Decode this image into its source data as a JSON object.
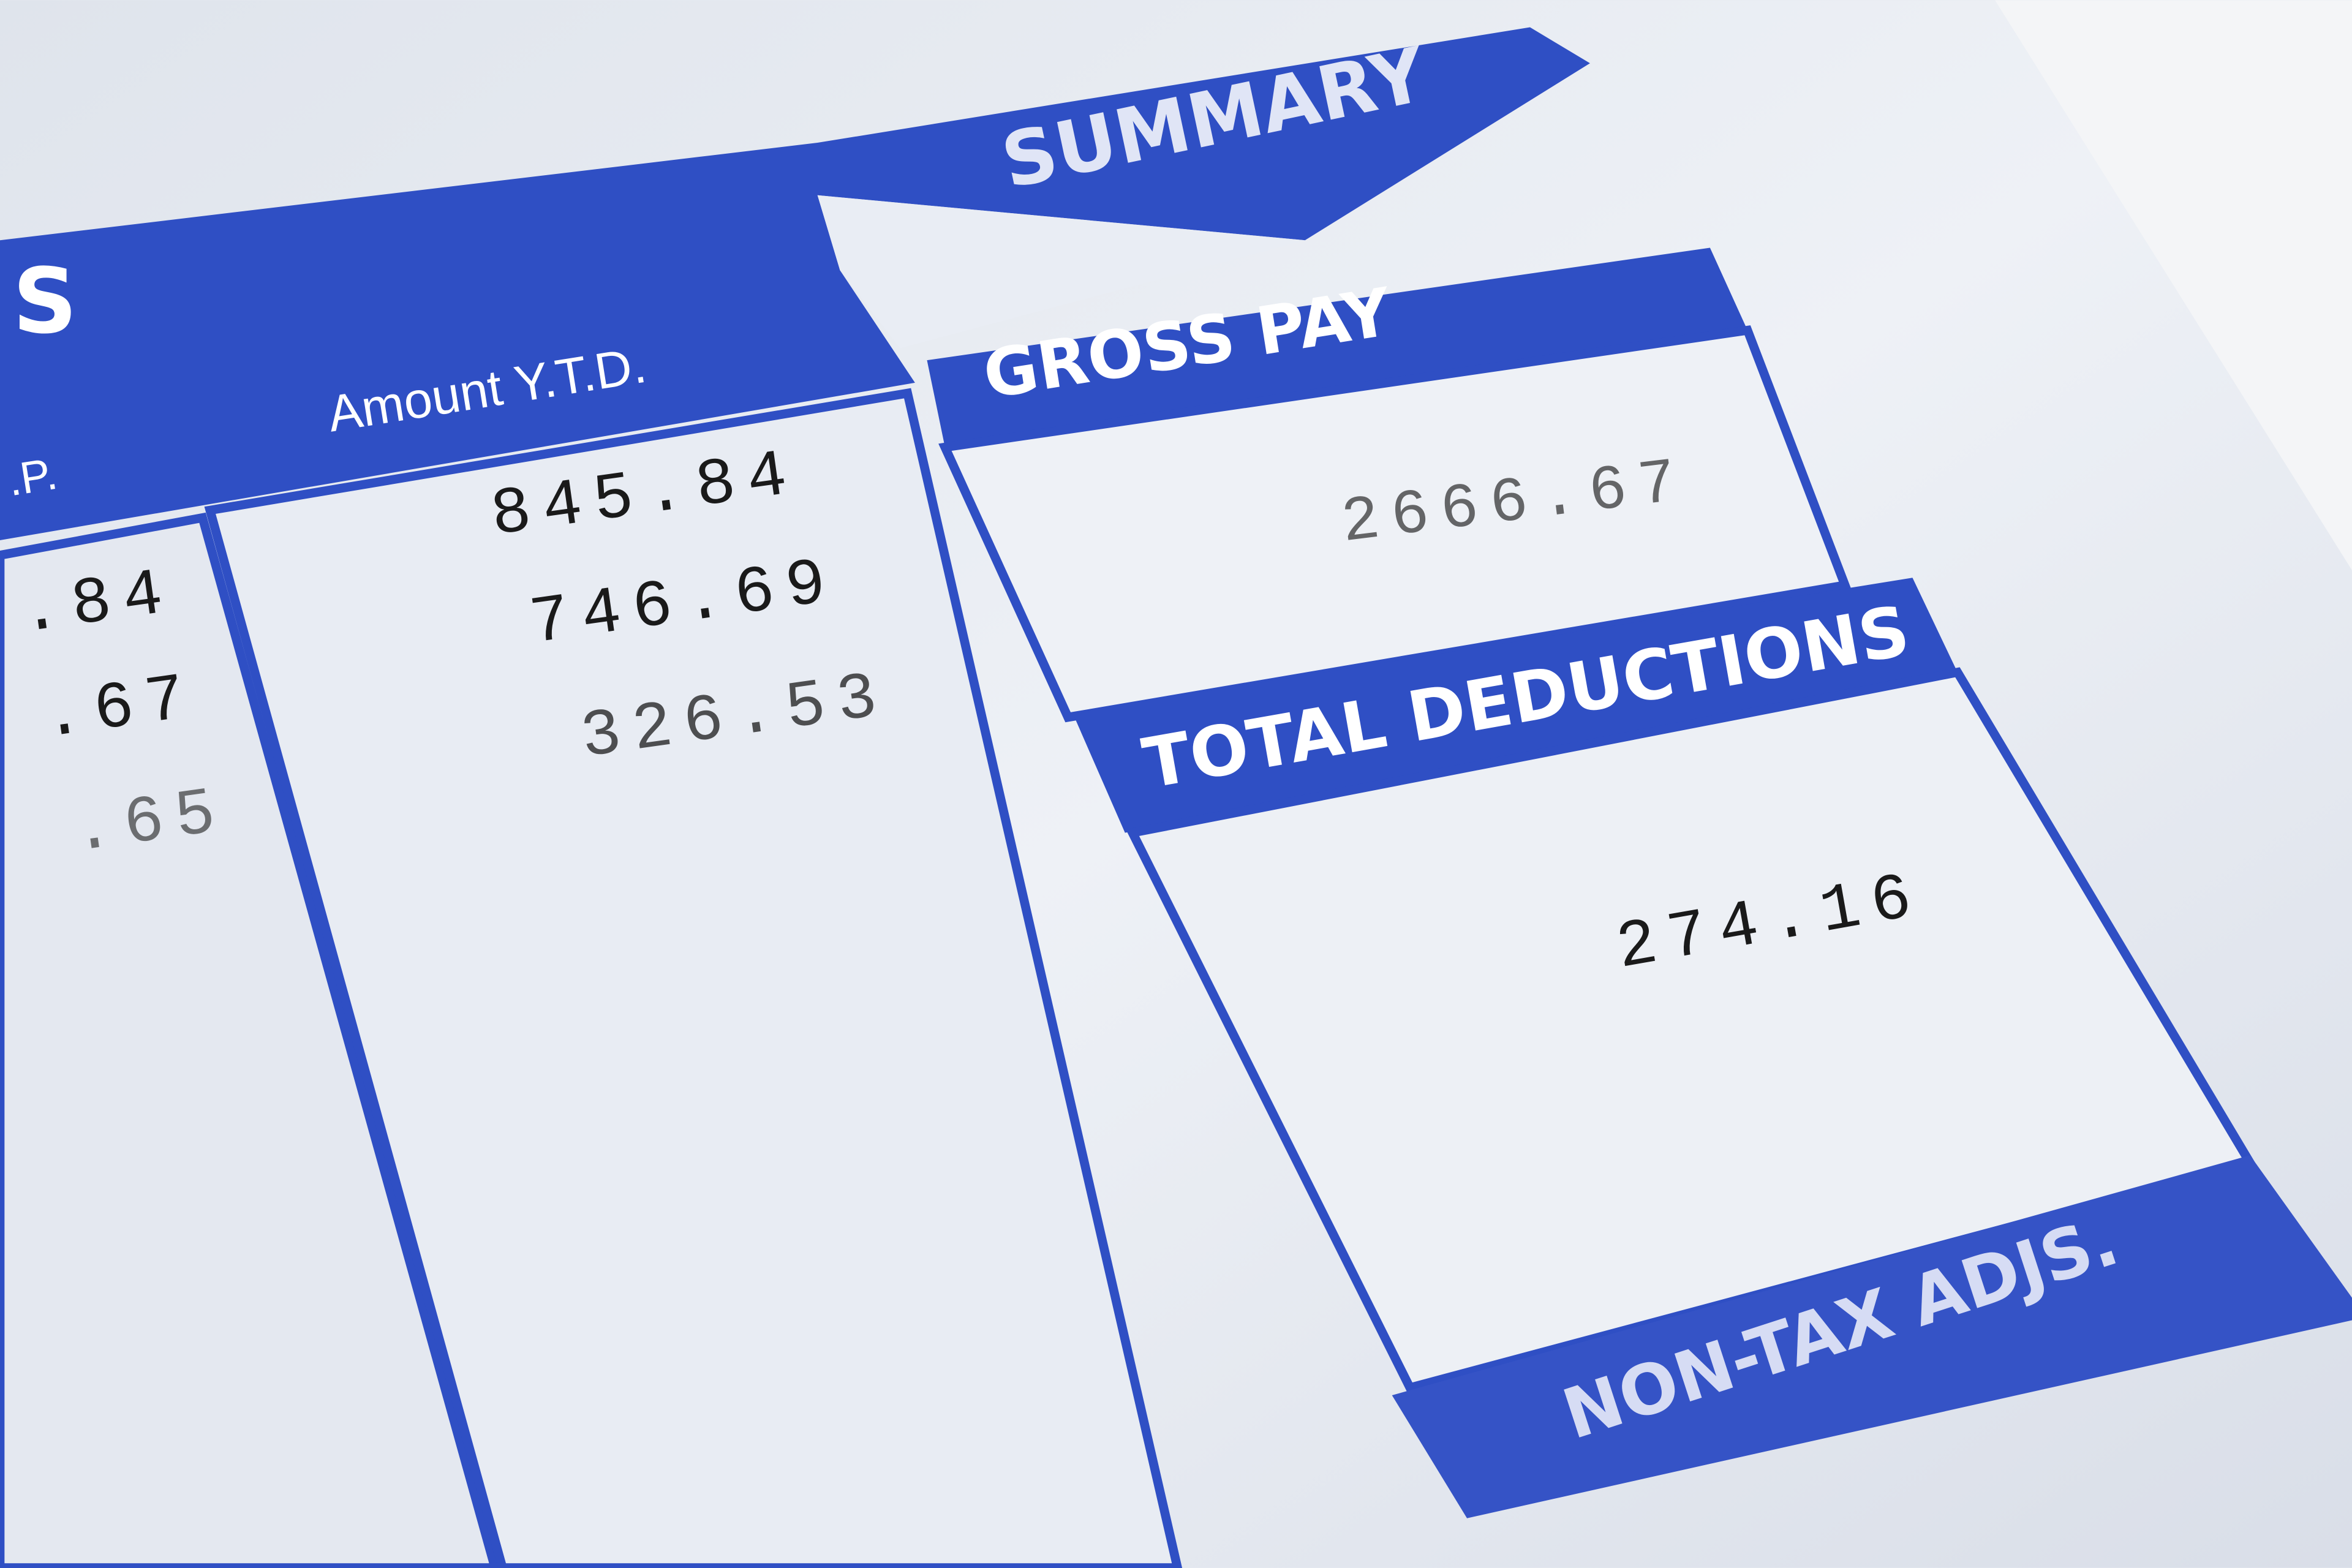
{
  "header": {
    "section_fragment": "S",
    "summary": "SUMMARY"
  },
  "earnings_table": {
    "columns": [
      ".P.",
      "Amount Y.T.D."
    ],
    "rows": [
      [
        ".84",
        "845.84"
      ],
      [
        ".67",
        "746.69"
      ],
      [
        ".65",
        "326.53"
      ]
    ]
  },
  "summary": {
    "gross_pay": {
      "label": "GROSS PAY",
      "value": "2666.67"
    },
    "total_deductions": {
      "label": "TOTAL DEDUCTIONS",
      "value": "274.16"
    },
    "non_tax_adjustments": {
      "label": "NON-TAX ADJS."
    }
  }
}
